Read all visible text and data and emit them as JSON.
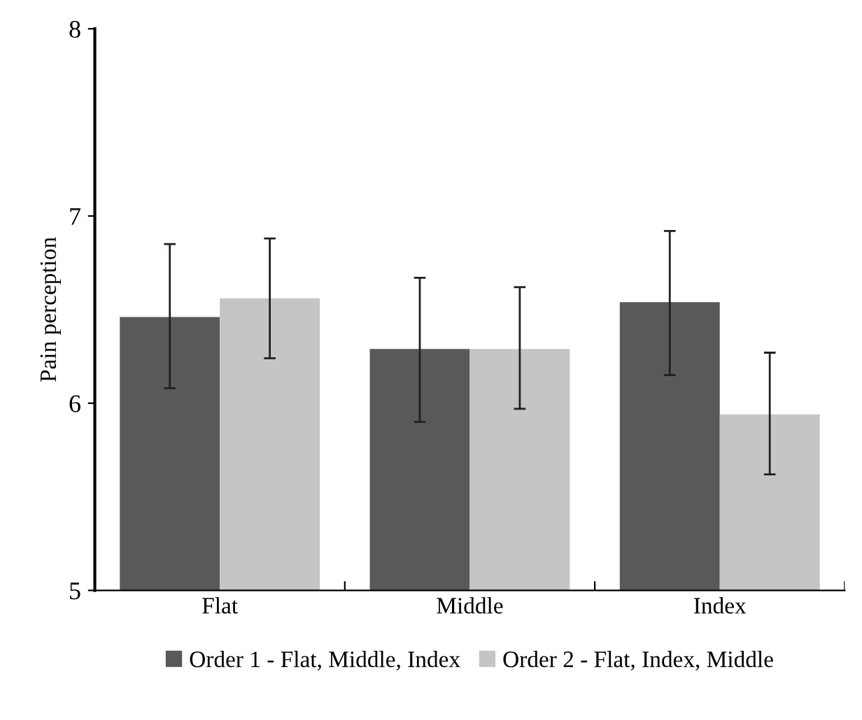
{
  "chart_data": {
    "type": "bar",
    "ylabel": "Pain perception",
    "categories": [
      "Flat",
      "Middle",
      "Index"
    ],
    "series": [
      {
        "name": "Order 1 - Flat, Middle, Index",
        "color": "#58595b",
        "values": [
          6.46,
          6.29,
          6.54
        ],
        "errors": [
          [
            6.08,
            6.85
          ],
          [
            5.9,
            6.67
          ],
          [
            6.15,
            6.92
          ]
        ]
      },
      {
        "name": "Order 2 - Flat, Index, Middle",
        "color": "#c4c5c7",
        "values": [
          6.56,
          6.29,
          5.94
        ],
        "errors": [
          [
            6.24,
            6.88
          ],
          [
            5.97,
            6.62
          ],
          [
            5.62,
            6.27
          ]
        ]
      }
    ],
    "ylim": [
      5,
      8
    ],
    "yticks": [
      5,
      6,
      7,
      8
    ],
    "grid": false,
    "legend": "bottom"
  }
}
